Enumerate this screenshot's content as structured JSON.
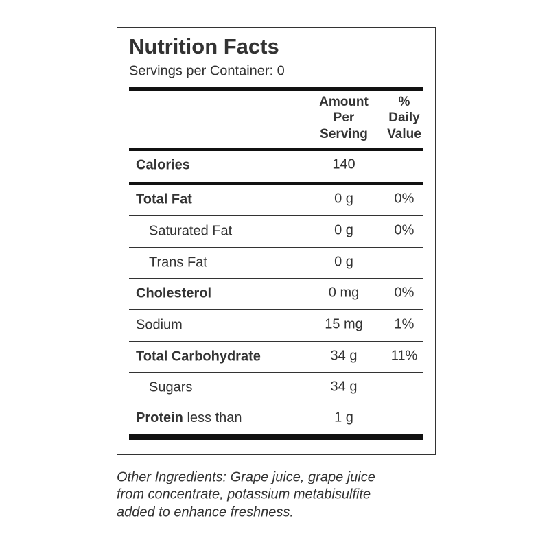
{
  "header": {
    "title": "Nutrition Facts",
    "servings": "Servings per Container: 0"
  },
  "columns": [
    [
      "Amount",
      "Per",
      "Serving"
    ],
    [
      "%",
      "Daily",
      "Value"
    ]
  ],
  "rows": [
    {
      "name": "Calories",
      "amount": "140"
    },
    {
      "name": "Total Fat",
      "amount": "0 g",
      "daily_value": "0%"
    },
    {
      "name": "Saturated Fat",
      "amount": "0 g",
      "daily_value": "0%"
    },
    {
      "name": "Trans Fat",
      "amount": "0 g"
    },
    {
      "name": "Cholesterol",
      "amount": "0 mg",
      "daily_value": "0%"
    },
    {
      "name": "Sodium",
      "amount": "15 mg",
      "daily_value": "1%"
    },
    {
      "name": "Total Carbohydrate",
      "amount": "34 g",
      "daily_value": "11%"
    },
    {
      "name": "Sugars",
      "amount": "34 g"
    },
    {
      "name": "Protein",
      "qualifier": " less than",
      "amount": "1 g"
    }
  ],
  "footer": {
    "lines": [
      "Other Ingredients: Grape juice, grape juice",
      "from concentrate, potassium metabisulfite",
      "added to enhance freshness."
    ]
  }
}
